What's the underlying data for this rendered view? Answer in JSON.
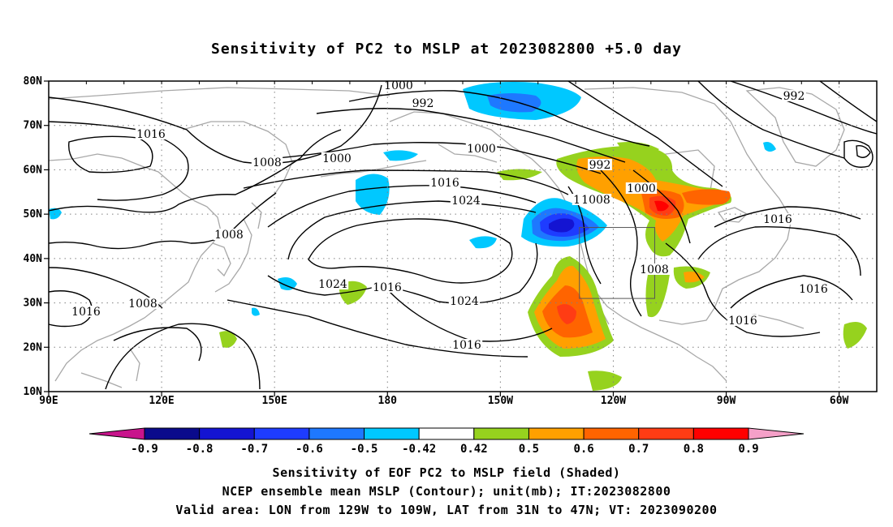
{
  "title": "Sensitivity of PC2 to MSLP at 2023082800 +5.0 day",
  "captions": [
    "Sensitivity of EOF PC2 to MSLP field (Shaded)",
    "NCEP ensemble mean MSLP (Contour); unit(mb); IT:2023082800",
    "Valid area: LON from 129W to 109W, LAT from 31N to 47N; VT: 2023090200"
  ],
  "map": {
    "lat_labels": [
      "80N",
      "70N",
      "60N",
      "50N",
      "40N",
      "30N",
      "20N",
      "10N"
    ],
    "lon_labels": [
      "90E",
      "120E",
      "150E",
      "180",
      "150W",
      "120W",
      "90W",
      "60W"
    ],
    "lat_range": [
      10,
      80
    ],
    "lon_range_east": [
      90,
      310
    ],
    "valid_area": {
      "lon_w": 129,
      "lon_e": 109,
      "lat_s": 31,
      "lat_n": 47
    },
    "contour_labels": [
      "1000",
      "992",
      "1016",
      "1008",
      "1000",
      "1000",
      "1016",
      "1024",
      "992",
      "1008",
      "1000",
      "1016",
      "1008",
      "1024",
      "1016",
      "1024",
      "1016",
      "1008",
      "1016",
      "1008",
      "1016",
      "1016",
      "992",
      "1008"
    ]
  },
  "colorbar": {
    "ticks": [
      "-0.9",
      "-0.8",
      "-0.7",
      "-0.6",
      "-0.5",
      "-0.42",
      "0.42",
      "0.5",
      "0.6",
      "0.7",
      "0.8",
      "0.9"
    ],
    "colors": [
      "#0a0a8c",
      "#1414d2",
      "#1e3cff",
      "#1e78ff",
      "#00c8ff",
      "#ffffff",
      "#96d21e",
      "#ffa000",
      "#ff6400",
      "#ff3c14",
      "#ff0000"
    ],
    "low_end_color": "#c8148c",
    "high_end_color": "#f5a0c8"
  },
  "colors": {
    "contour": "#000000",
    "coast": "#a8a8a8",
    "grid": "#808080"
  }
}
